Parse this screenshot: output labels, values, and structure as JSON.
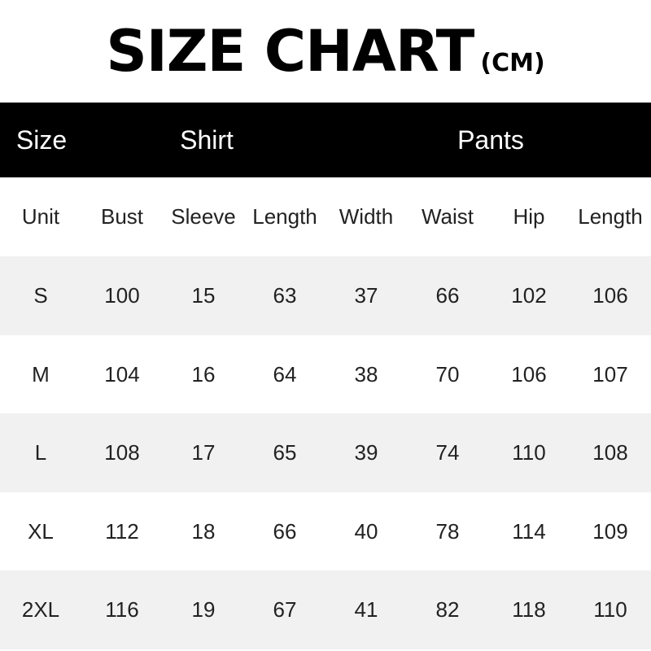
{
  "title": {
    "main": "SIZE CHART",
    "unit": "(CM)"
  },
  "header": {
    "size": "Size",
    "shirt": "Shirt",
    "pants": "Pants"
  },
  "columns": [
    "Unit",
    "Bust",
    "Sleeve",
    "Length",
    "Width",
    "Waist",
    "Hip",
    "Length"
  ],
  "rows": [
    [
      "S",
      "100",
      "15",
      "63",
      "37",
      "66",
      "102",
      "106"
    ],
    [
      "M",
      "104",
      "16",
      "64",
      "38",
      "70",
      "106",
      "107"
    ],
    [
      "L",
      "108",
      "17",
      "65",
      "39",
      "74",
      "110",
      "108"
    ],
    [
      "XL",
      "112",
      "18",
      "66",
      "40",
      "78",
      "114",
      "109"
    ],
    [
      "2XL",
      "116",
      "19",
      "67",
      "41",
      "82",
      "118",
      "110"
    ]
  ],
  "colors": {
    "header_bg": "#000000",
    "stripe": "#f1f1f1"
  }
}
